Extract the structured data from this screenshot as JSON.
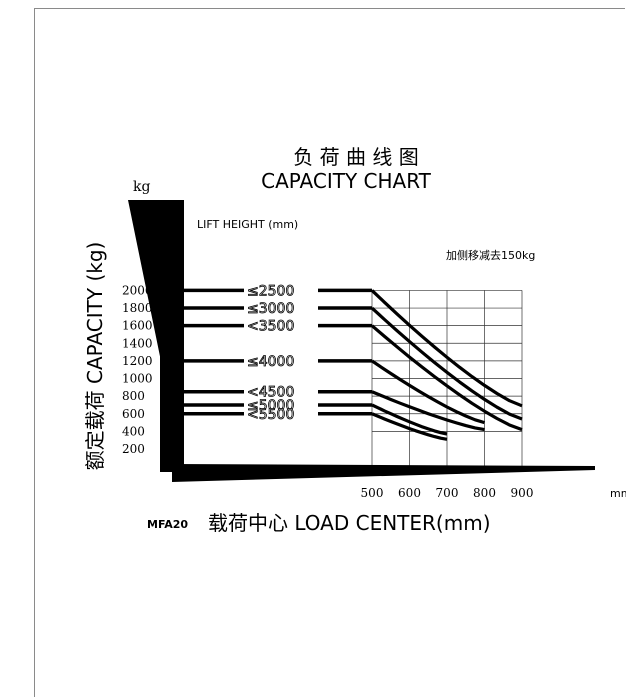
{
  "chart_data": {
    "type": "line",
    "title_cn": "负 荷 曲 线 图",
    "title": "CAPACITY CHART",
    "unit_top": "kg",
    "ylabel": "额定载荷 CAPACITY (kg)",
    "lift_height_label": "LIFT HEIGHT (mm)",
    "note": "加侧移减去150kg",
    "yticks": [
      2000,
      1800,
      1600,
      1400,
      1200,
      1000,
      800,
      600,
      400,
      200
    ],
    "xticks": [
      500,
      600,
      700,
      800,
      900
    ],
    "xunit": "mm",
    "model": "MFA20",
    "xlabel": "载荷中心 LOAD CENTER(mm)",
    "ylim": [
      0,
      2200
    ],
    "xlim": [
      500,
      900
    ],
    "series": [
      {
        "name": "≤2500",
        "load": 2000,
        "x": [
          500,
          900
        ],
        "y": [
          2000,
          690
        ]
      },
      {
        "name": "≤3000",
        "load": 1800,
        "x": [
          500,
          900
        ],
        "y": [
          1800,
          540
        ]
      },
      {
        "name": "<3500",
        "load": 1600,
        "x": [
          500,
          900
        ],
        "y": [
          1600,
          420
        ]
      },
      {
        "name": "≤4000",
        "load": 1200,
        "x": [
          500,
          800
        ],
        "y": [
          1200,
          500
        ]
      },
      {
        "name": "<4500",
        "load": 850,
        "x": [
          500,
          800
        ],
        "y": [
          850,
          420
        ]
      },
      {
        "name": "≤5000",
        "load": 700,
        "x": [
          500,
          700
        ],
        "y": [
          700,
          370
        ]
      },
      {
        "name": "<5500",
        "load": 600,
        "x": [
          500,
          700
        ],
        "y": [
          600,
          310
        ]
      }
    ]
  }
}
